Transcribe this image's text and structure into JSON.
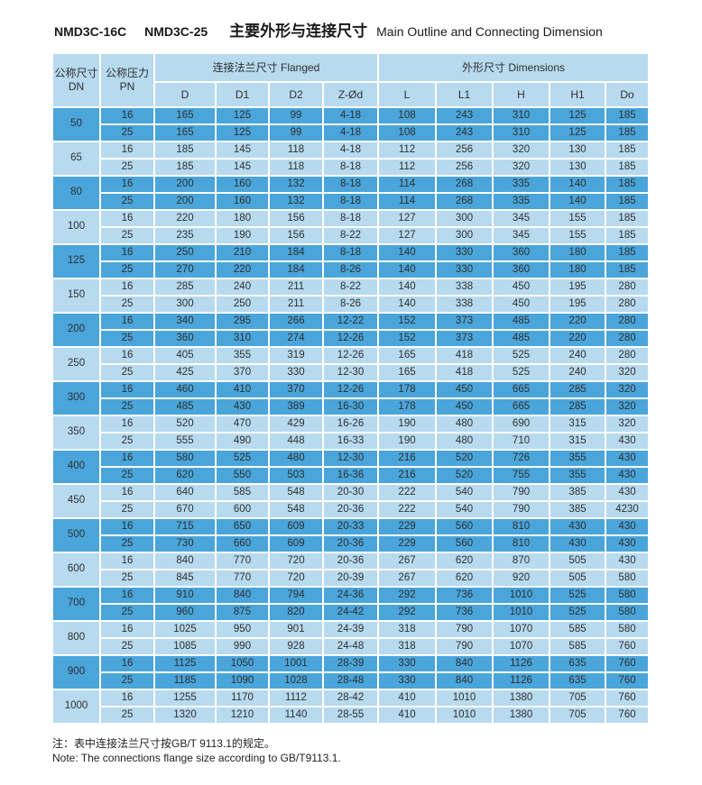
{
  "title": {
    "model_1": "NMD3C-16C",
    "model_2": "NMD3C-25",
    "cn": "主要外形与连接尺寸",
    "en": "Main Outline and Connecting Dimension"
  },
  "table": {
    "header": {
      "dn_cn": "公称尺寸",
      "dn_en": "DN",
      "pn_cn": "公称压力",
      "pn_en": "PN",
      "flanged_group": "连接法兰尺寸 Flanged",
      "dimensions_group": "外形尺寸 Dimensions",
      "columns": [
        "D",
        "D1",
        "D2",
        "Z-Ød",
        "L",
        "L1",
        "H",
        "H1",
        "Do"
      ]
    },
    "groups": [
      {
        "dn": "50",
        "rows": [
          {
            "pn": "16",
            "values": [
              "165",
              "125",
              "99",
              "4-18",
              "108",
              "243",
              "310",
              "125",
              "185"
            ]
          },
          {
            "pn": "25",
            "values": [
              "165",
              "125",
              "99",
              "4-18",
              "108",
              "243",
              "310",
              "125",
              "185"
            ]
          }
        ]
      },
      {
        "dn": "65",
        "rows": [
          {
            "pn": "16",
            "values": [
              "185",
              "145",
              "118",
              "4-18",
              "112",
              "256",
              "320",
              "130",
              "185"
            ]
          },
          {
            "pn": "25",
            "values": [
              "185",
              "145",
              "118",
              "8-18",
              "112",
              "256",
              "320",
              "130",
              "185"
            ]
          }
        ]
      },
      {
        "dn": "80",
        "rows": [
          {
            "pn": "16",
            "values": [
              "200",
              "160",
              "132",
              "8-18",
              "114",
              "268",
              "335",
              "140",
              "185"
            ]
          },
          {
            "pn": "25",
            "values": [
              "200",
              "160",
              "132",
              "8-18",
              "114",
              "268",
              "335",
              "140",
              "185"
            ]
          }
        ]
      },
      {
        "dn": "100",
        "rows": [
          {
            "pn": "16",
            "values": [
              "220",
              "180",
              "156",
              "8-18",
              "127",
              "300",
              "345",
              "155",
              "185"
            ]
          },
          {
            "pn": "25",
            "values": [
              "235",
              "190",
              "156",
              "8-22",
              "127",
              "300",
              "345",
              "155",
              "185"
            ]
          }
        ]
      },
      {
        "dn": "125",
        "rows": [
          {
            "pn": "16",
            "values": [
              "250",
              "210",
              "184",
              "8-18",
              "140",
              "330",
              "360",
              "180",
              "185"
            ]
          },
          {
            "pn": "25",
            "values": [
              "270",
              "220",
              "184",
              "8-26",
              "140",
              "330",
              "360",
              "180",
              "185"
            ]
          }
        ]
      },
      {
        "dn": "150",
        "rows": [
          {
            "pn": "16",
            "values": [
              "285",
              "240",
              "211",
              "8-22",
              "140",
              "338",
              "450",
              "195",
              "280"
            ]
          },
          {
            "pn": "25",
            "values": [
              "300",
              "250",
              "211",
              "8-26",
              "140",
              "338",
              "450",
              "195",
              "280"
            ]
          }
        ]
      },
      {
        "dn": "200",
        "rows": [
          {
            "pn": "16",
            "values": [
              "340",
              "295",
              "266",
              "12-22",
              "152",
              "373",
              "485",
              "220",
              "280"
            ]
          },
          {
            "pn": "25",
            "values": [
              "360",
              "310",
              "274",
              "12-26",
              "152",
              "373",
              "485",
              "220",
              "280"
            ]
          }
        ]
      },
      {
        "dn": "250",
        "rows": [
          {
            "pn": "16",
            "values": [
              "405",
              "355",
              "319",
              "12-26",
              "165",
              "418",
              "525",
              "240",
              "280"
            ]
          },
          {
            "pn": "25",
            "values": [
              "425",
              "370",
              "330",
              "12-30",
              "165",
              "418",
              "525",
              "240",
              "320"
            ]
          }
        ]
      },
      {
        "dn": "300",
        "rows": [
          {
            "pn": "16",
            "values": [
              "460",
              "410",
              "370",
              "12-26",
              "178",
              "450",
              "665",
              "285",
              "320"
            ]
          },
          {
            "pn": "25",
            "values": [
              "485",
              "430",
              "389",
              "16-30",
              "178",
              "450",
              "665",
              "285",
              "320"
            ]
          }
        ]
      },
      {
        "dn": "350",
        "rows": [
          {
            "pn": "16",
            "values": [
              "520",
              "470",
              "429",
              "16-26",
              "190",
              "480",
              "690",
              "315",
              "320"
            ]
          },
          {
            "pn": "25",
            "values": [
              "555",
              "490",
              "448",
              "16-33",
              "190",
              "480",
              "710",
              "315",
              "430"
            ]
          }
        ]
      },
      {
        "dn": "400",
        "rows": [
          {
            "pn": "16",
            "values": [
              "580",
              "525",
              "480",
              "12-30",
              "216",
              "520",
              "726",
              "355",
              "430"
            ]
          },
          {
            "pn": "25",
            "values": [
              "620",
              "550",
              "503",
              "16-36",
              "216",
              "520",
              "755",
              "355",
              "430"
            ]
          }
        ]
      },
      {
        "dn": "450",
        "rows": [
          {
            "pn": "16",
            "values": [
              "640",
              "585",
              "548",
              "20-30",
              "222",
              "540",
              "790",
              "385",
              "430"
            ]
          },
          {
            "pn": "25",
            "values": [
              "670",
              "600",
              "548",
              "20-36",
              "222",
              "540",
              "790",
              "385",
              "4230"
            ]
          }
        ]
      },
      {
        "dn": "500",
        "rows": [
          {
            "pn": "16",
            "values": [
              "715",
              "650",
              "609",
              "20-33",
              "229",
              "560",
              "810",
              "430",
              "430"
            ]
          },
          {
            "pn": "25",
            "values": [
              "730",
              "660",
              "609",
              "20-36",
              "229",
              "560",
              "810",
              "430",
              "430"
            ]
          }
        ]
      },
      {
        "dn": "600",
        "rows": [
          {
            "pn": "16",
            "values": [
              "840",
              "770",
              "720",
              "20-36",
              "267",
              "620",
              "870",
              "505",
              "430"
            ]
          },
          {
            "pn": "25",
            "values": [
              "845",
              "770",
              "720",
              "20-39",
              "267",
              "620",
              "920",
              "505",
              "580"
            ]
          }
        ]
      },
      {
        "dn": "700",
        "rows": [
          {
            "pn": "16",
            "values": [
              "910",
              "840",
              "794",
              "24-36",
              "292",
              "736",
              "1010",
              "525",
              "580"
            ]
          },
          {
            "pn": "25",
            "values": [
              "960",
              "875",
              "820",
              "24-42",
              "292",
              "736",
              "1010",
              "525",
              "580"
            ]
          }
        ]
      },
      {
        "dn": "800",
        "rows": [
          {
            "pn": "16",
            "values": [
              "1025",
              "950",
              "901",
              "24-39",
              "318",
              "790",
              "1070",
              "585",
              "580"
            ]
          },
          {
            "pn": "25",
            "values": [
              "1085",
              "990",
              "928",
              "24-48",
              "318",
              "790",
              "1070",
              "585",
              "760"
            ]
          }
        ]
      },
      {
        "dn": "900",
        "rows": [
          {
            "pn": "16",
            "values": [
              "1125",
              "1050",
              "1001",
              "28-39",
              "330",
              "840",
              "1126",
              "635",
              "760"
            ]
          },
          {
            "pn": "25",
            "values": [
              "1185",
              "1090",
              "1028",
              "28-48",
              "330",
              "840",
              "1126",
              "635",
              "760"
            ]
          }
        ]
      },
      {
        "dn": "1000",
        "rows": [
          {
            "pn": "16",
            "values": [
              "1255",
              "1170",
              "1112",
              "28-42",
              "410",
              "1010",
              "1380",
              "705",
              "760"
            ]
          },
          {
            "pn": "25",
            "values": [
              "1320",
              "1210",
              "1140",
              "28-55",
              "410",
              "1010",
              "1380",
              "705",
              "760"
            ]
          }
        ]
      }
    ]
  },
  "notes": {
    "cn": "注：表中连接法兰尺寸按GB/T 9113.1的规定。",
    "en": "Note: The connections flange size according to GB/T9113.1."
  },
  "colors": {
    "row_dark": "#4AA5DA",
    "row_light": "#B7DAEF",
    "header_bg": "#B7DAEF",
    "border": "#FFFFFF",
    "text_dark": "#2F2F2F"
  }
}
